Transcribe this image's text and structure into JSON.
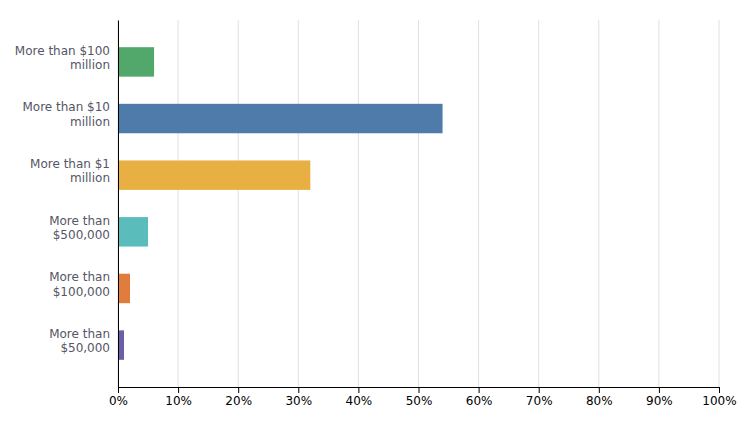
{
  "chart_data": {
    "type": "bar",
    "orientation": "horizontal",
    "categories": [
      "More than $100\nmillion",
      "More than $10\nmillion",
      "More than $1\nmillion",
      "More than\n$500,000",
      "More than\n$100,000",
      "More than\n$50,000"
    ],
    "values": [
      6,
      54,
      32,
      5,
      2,
      1
    ],
    "colors": [
      "#52a86b",
      "#4f7bab",
      "#e8b043",
      "#5bbcbc",
      "#e07d3c",
      "#6b5fa5"
    ],
    "xlim": [
      0,
      100
    ],
    "xticks": [
      {
        "value": 0,
        "label": "0%"
      },
      {
        "value": 10,
        "label": "10%"
      },
      {
        "value": 20,
        "label": "20%"
      },
      {
        "value": 30,
        "label": "30%"
      },
      {
        "value": 40,
        "label": "40%"
      },
      {
        "value": 50,
        "label": "50%"
      },
      {
        "value": 60,
        "label": "60%"
      },
      {
        "value": 70,
        "label": "70%"
      },
      {
        "value": 80,
        "label": "80%"
      },
      {
        "value": 90,
        "label": "90%"
      },
      {
        "value": 100,
        "label": "100%"
      }
    ],
    "grid": true
  }
}
